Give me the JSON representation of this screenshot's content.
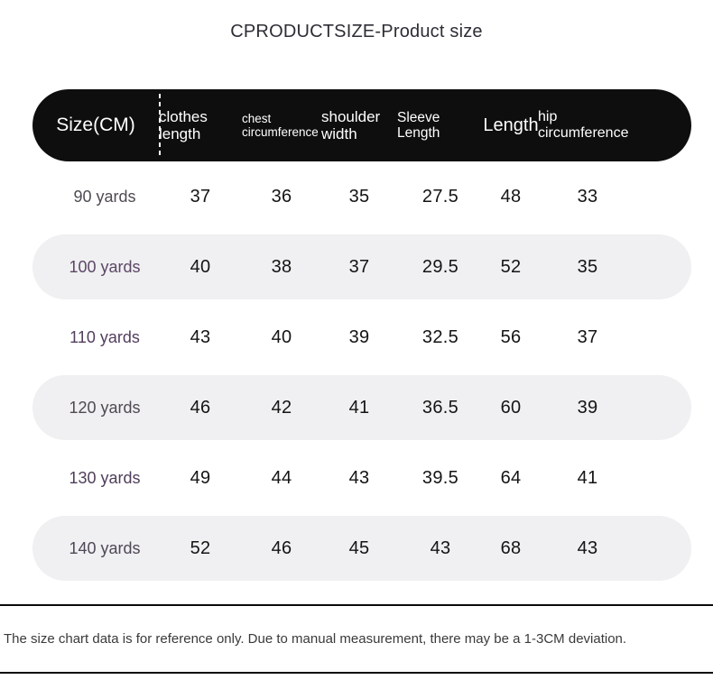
{
  "page": {
    "title": "CPRODUCTSIZE-Product size",
    "footer_note": "The size chart data is for reference only. Due to manual measurement, there may be a 1-3CM deviation."
  },
  "table": {
    "columns": [
      {
        "key": "size",
        "label": "Size(CM)"
      },
      {
        "key": "clothes_length",
        "label": "clothes length"
      },
      {
        "key": "chest_circumference",
        "label": "chest circumference"
      },
      {
        "key": "shoulder_width",
        "label": "shoulder width"
      },
      {
        "key": "sleeve_length",
        "label": "Sleeve Length"
      },
      {
        "key": "length",
        "label": "Length"
      },
      {
        "key": "hip_circumference",
        "label": "hip circumference"
      }
    ],
    "rows": [
      {
        "size": "90 yards",
        "label_color": "#504a52",
        "values": [
          "37",
          "36",
          "35",
          "27.5",
          "48",
          "33"
        ]
      },
      {
        "size": "100 yards",
        "label_color": "#5c4766",
        "values": [
          "40",
          "38",
          "37",
          "29.5",
          "52",
          "35"
        ]
      },
      {
        "size": "110 yards",
        "label_color": "#523e5e",
        "values": [
          "43",
          "40",
          "39",
          "32.5",
          "56",
          "37"
        ]
      },
      {
        "size": "120 yards",
        "label_color": "#4f4a51",
        "values": [
          "46",
          "42",
          "41",
          "36.5",
          "60",
          "39"
        ]
      },
      {
        "size": "130 yards",
        "label_color": "#4f3e5a",
        "values": [
          "49",
          "44",
          "43",
          "39.5",
          "64",
          "41"
        ]
      },
      {
        "size": "140 yards",
        "label_color": "#4e4857",
        "values": [
          "52",
          "46",
          "45",
          "43",
          "68",
          "43"
        ]
      }
    ]
  },
  "colors": {
    "header_bg": "#0e0e0e",
    "header_text": "#ffffff",
    "alt_row_bg": "#f0eff1",
    "value_text": "#141414",
    "title_text": "#2d2d35",
    "divider": "#0a0a0a"
  },
  "chart_data": {
    "type": "table",
    "title": "CPRODUCTSIZE-Product size",
    "unit": "CM",
    "columns": [
      "Size(CM)",
      "clothes length",
      "chest circumference",
      "shoulder width",
      "Sleeve Length",
      "Length",
      "hip circumference"
    ],
    "rows": [
      [
        "90 yards",
        37,
        36,
        35,
        27.5,
        48,
        33
      ],
      [
        "100 yards",
        40,
        38,
        37,
        29.5,
        52,
        35
      ],
      [
        "110 yards",
        43,
        40,
        39,
        32.5,
        56,
        37
      ],
      [
        "120 yards",
        46,
        42,
        41,
        36.5,
        60,
        39
      ],
      [
        "130 yards",
        49,
        44,
        43,
        39.5,
        64,
        41
      ],
      [
        "140 yards",
        52,
        46,
        45,
        43,
        68,
        43
      ]
    ],
    "note": "The size chart data is for reference only. Due to manual measurement, there may be a 1-3CM deviation."
  }
}
